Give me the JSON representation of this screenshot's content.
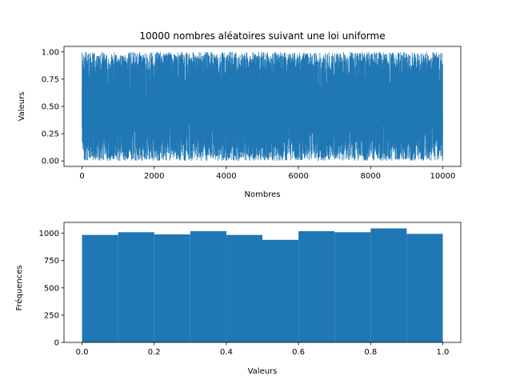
{
  "chart_data": [
    {
      "type": "line",
      "title": "10000 nombres aléatoires suivant une loi uniforme",
      "xlabel": "Nombres",
      "ylabel": "Valeurs",
      "xlim": [
        -500,
        10500
      ],
      "ylim": [
        -0.05,
        1.05
      ],
      "xticks": [
        0,
        2000,
        4000,
        6000,
        8000,
        10000
      ],
      "xtick_labels": [
        "0",
        "2000",
        "4000",
        "6000",
        "8000",
        "10000"
      ],
      "yticks": [
        0.0,
        0.25,
        0.5,
        0.75,
        1.0
      ],
      "ytick_labels": [
        "0.00",
        "0.25",
        "0.50",
        "0.75",
        "1.00"
      ],
      "grid": false,
      "series": [
        {
          "color": "#1f77b4",
          "x_range": [
            0,
            9999
          ],
          "n_points": 10000,
          "distribution": "uniform",
          "y_range": [
            0,
            1
          ]
        }
      ]
    },
    {
      "type": "bar",
      "title": "",
      "xlabel": "Valeurs",
      "ylabel": "Fréquences",
      "xlim": [
        -0.05,
        1.05
      ],
      "ylim": [
        0,
        1100
      ],
      "xticks": [
        0.0,
        0.2,
        0.4,
        0.6,
        0.8,
        1.0
      ],
      "xtick_labels": [
        "0.0",
        "0.2",
        "0.4",
        "0.6",
        "0.8",
        "1.0"
      ],
      "yticks": [
        0,
        250,
        500,
        750,
        1000
      ],
      "ytick_labels": [
        "0",
        "250",
        "500",
        "750",
        "1000"
      ],
      "grid": false,
      "color": "#1f77b4",
      "bin_edges": [
        0.0,
        0.1,
        0.2,
        0.3,
        0.4,
        0.5,
        0.6,
        0.7,
        0.8,
        0.9,
        1.0
      ],
      "values": [
        985,
        1010,
        990,
        1020,
        985,
        940,
        1020,
        1010,
        1045,
        995
      ]
    }
  ]
}
